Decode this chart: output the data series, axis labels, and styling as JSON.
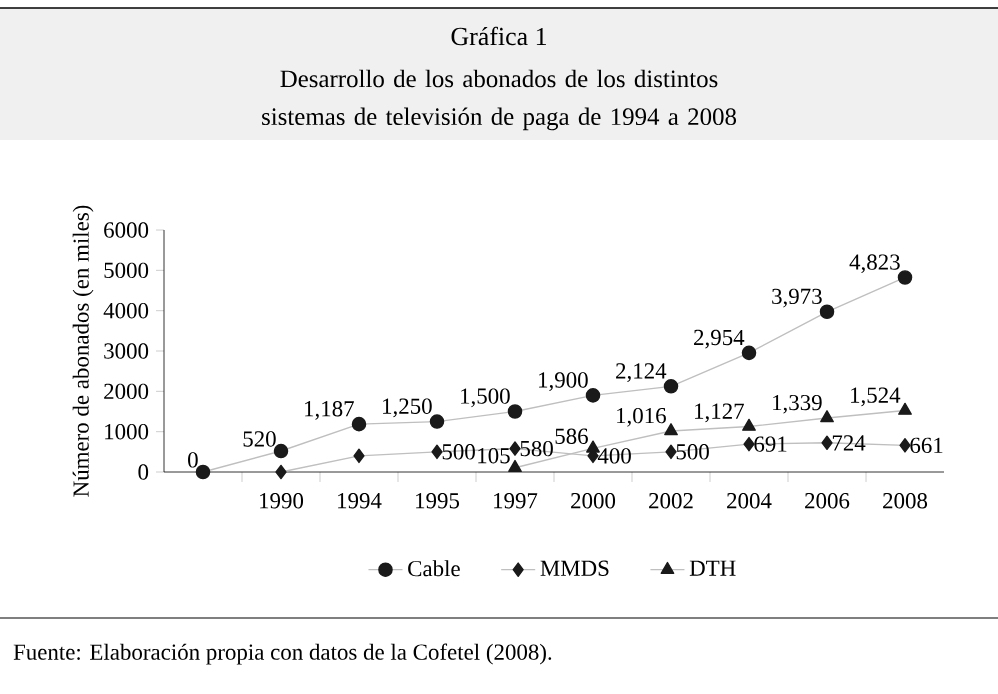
{
  "chart_data": {
    "type": "line",
    "title": "Gráfica 1",
    "subtitle": "Desarrollo de los abonados de los distintos sistemas de televisión de paga de 1994 a 2008",
    "ylabel": "Número de abonados (en miles)",
    "categories": [
      null,
      "1990",
      "1994",
      "1995",
      "1997",
      "2000",
      "2002",
      "2004",
      "2006",
      "2008"
    ],
    "series": [
      {
        "name": "Cable",
        "color": "#1a1a1a",
        "marker": "circle",
        "values": [
          0,
          520,
          1187,
          1250,
          1500,
          1900,
          2124,
          2954,
          3973,
          4823
        ],
        "value_labels": [
          "0",
          "520",
          "1,187",
          "1,250",
          "1,500",
          "1,900",
          "2,124",
          "2,954",
          "3,973",
          "4,823"
        ]
      },
      {
        "name": "MMDS",
        "color": "#1a1a1a",
        "marker": "diamond",
        "values": [
          null,
          0,
          400,
          500,
          580,
          400,
          500,
          691,
          724,
          661
        ],
        "value_labels": [
          null,
          null,
          null,
          "500",
          "580",
          "400",
          "500",
          "691",
          "724",
          "661"
        ]
      },
      {
        "name": "DTH",
        "color": "#1a1a1a",
        "marker": "triangle",
        "values": [
          null,
          null,
          null,
          null,
          105,
          586,
          1016,
          1127,
          1339,
          1524
        ],
        "value_labels": [
          null,
          null,
          null,
          null,
          "105",
          "586",
          "1,016",
          "1,127",
          "1,339",
          "1,524"
        ]
      }
    ],
    "ylim": [
      0,
      6000
    ],
    "yticks": [
      0,
      1000,
      2000,
      3000,
      4000,
      5000,
      6000
    ],
    "grid": false,
    "legend": "bottom",
    "line_style": "solid",
    "annotations": [
      "Fuente: Elaboración propia con datos de la Cofetel (2008)."
    ]
  }
}
